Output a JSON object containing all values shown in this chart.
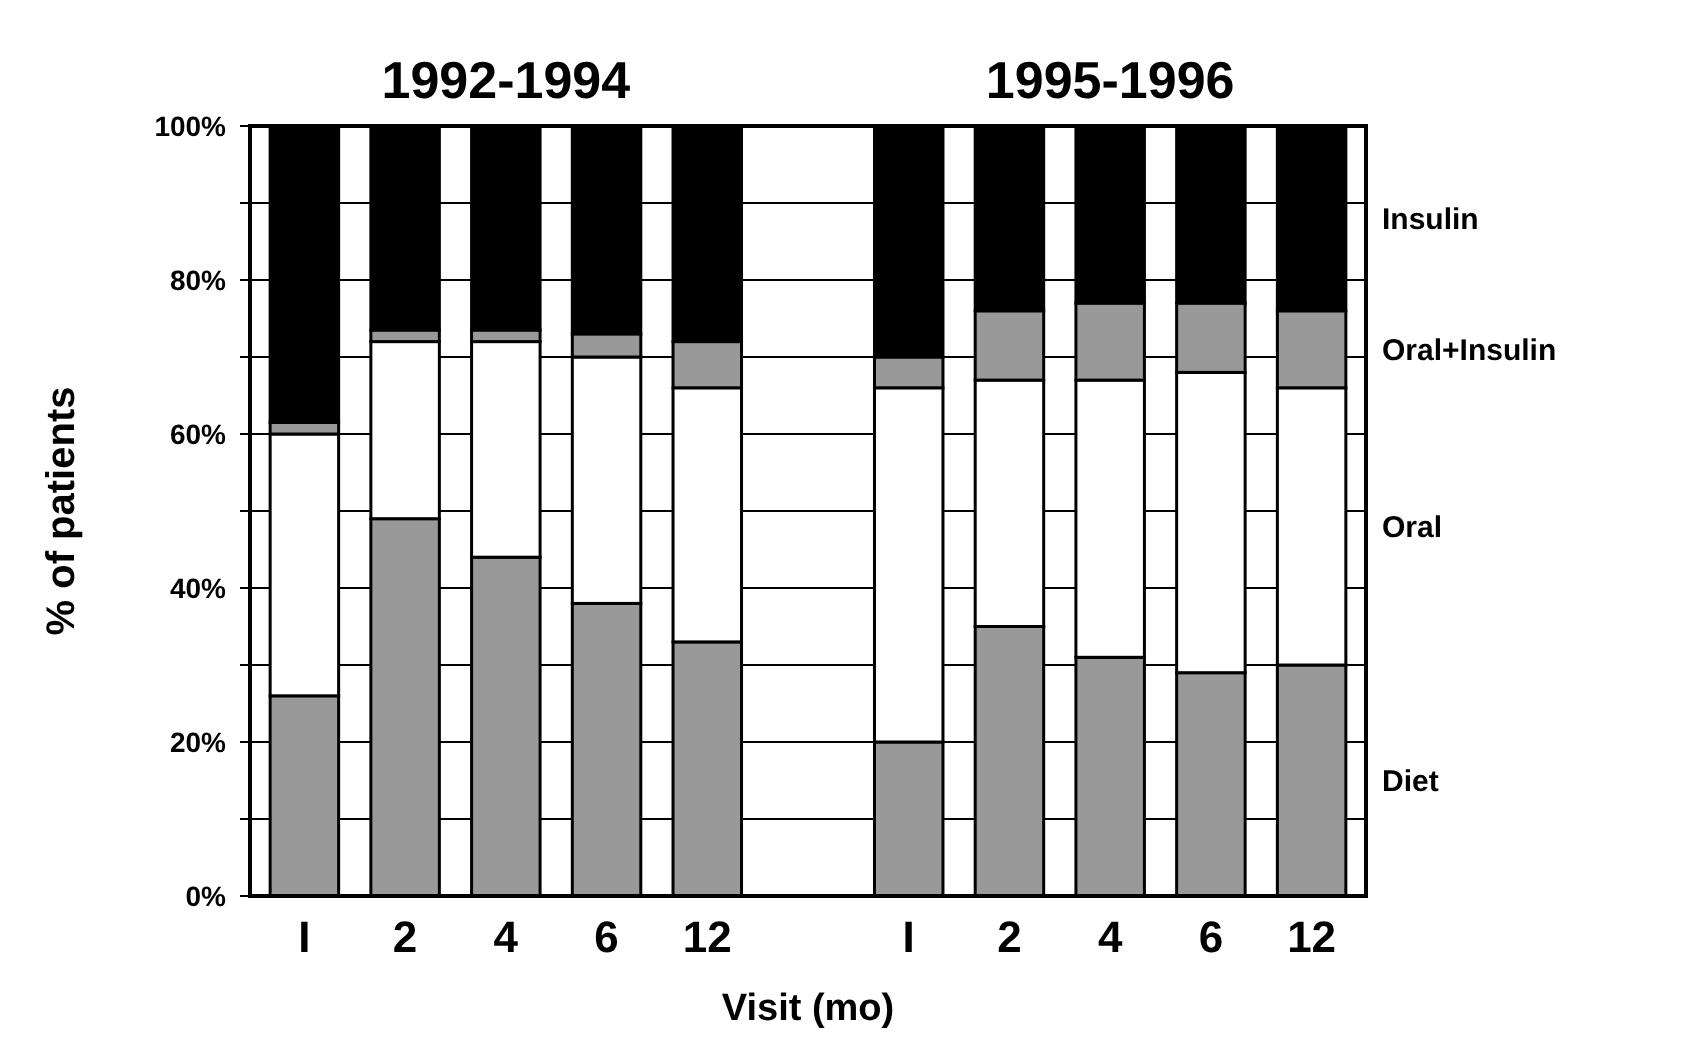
{
  "chart_data": {
    "type": "bar",
    "stacked": true,
    "xlabel": "Visit (mo)",
    "ylabel": "% of patients",
    "annotations": [
      "1992-1994",
      "1995-1996"
    ],
    "categories": [
      "I",
      "2",
      "4",
      "6",
      "12",
      null,
      "I",
      "2",
      "4",
      "6",
      "12"
    ],
    "series": [
      {
        "name": "Diet",
        "color": "#999999",
        "values": [
          26,
          49,
          44,
          38,
          33,
          null,
          20,
          35,
          31,
          29,
          30
        ]
      },
      {
        "name": "Oral",
        "color": "#ffffff",
        "values": [
          34,
          23,
          28,
          32,
          33,
          null,
          46,
          32,
          36,
          39,
          36
        ]
      },
      {
        "name": "Oral+Insulin",
        "color": "#999999",
        "values": [
          1.5,
          1.5,
          1.5,
          3,
          6,
          null,
          4,
          9,
          10,
          9,
          10
        ]
      },
      {
        "name": "Insulin",
        "color": "#000000",
        "values": [
          38.5,
          26.5,
          26.5,
          27,
          28,
          null,
          30,
          24,
          23,
          23,
          24
        ]
      }
    ],
    "ylim": [
      0,
      100
    ],
    "yticks": [
      {
        "value": 0,
        "label": "0%"
      },
      {
        "value": 10,
        "label": null
      },
      {
        "value": 20,
        "label": "20%"
      },
      {
        "value": 30,
        "label": null
      },
      {
        "value": 40,
        "label": "40%"
      },
      {
        "value": 50,
        "label": null
      },
      {
        "value": 60,
        "label": "60%"
      },
      {
        "value": 70,
        "label": null
      },
      {
        "value": 80,
        "label": "80%"
      },
      {
        "value": 90,
        "label": null
      },
      {
        "value": 100,
        "label": "100%"
      }
    ],
    "grid": "y",
    "legend": "right"
  }
}
